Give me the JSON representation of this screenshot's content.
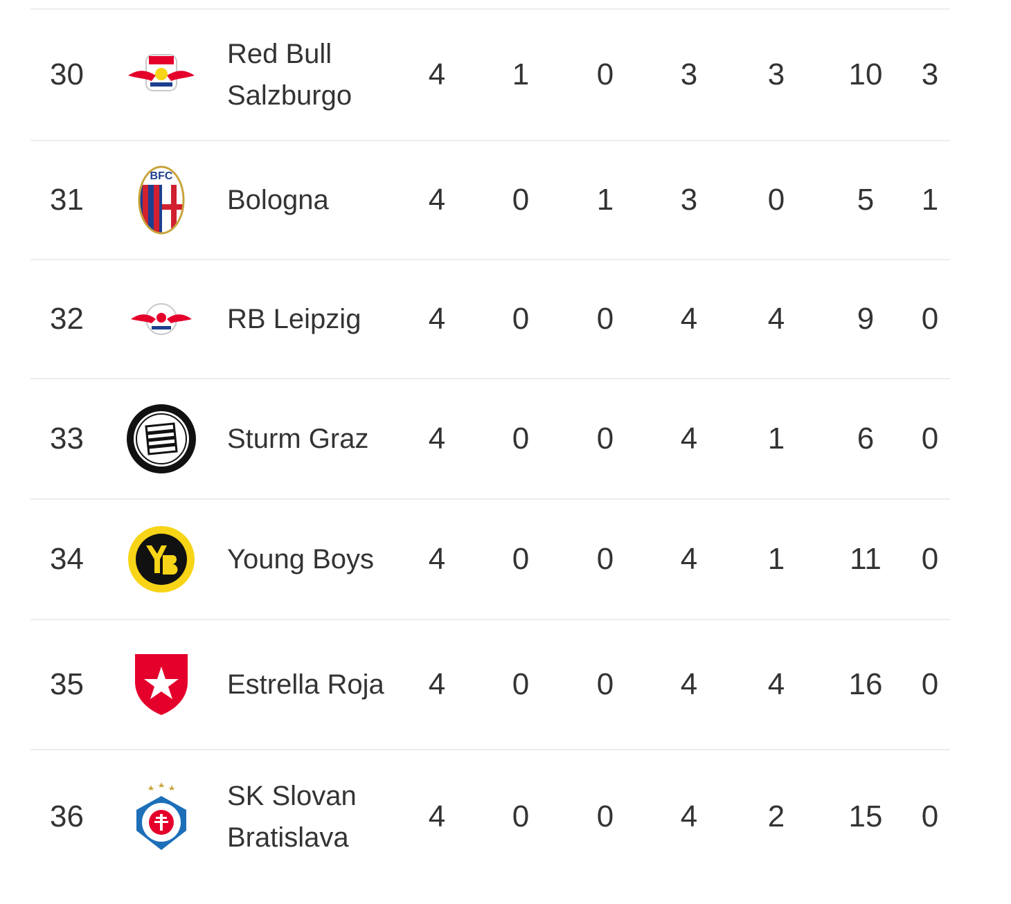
{
  "rows": [
    {
      "pos": "30",
      "team": "Red Bull Salzburgo",
      "crest": "red-bull-salzburg-crest",
      "stats": [
        "4",
        "1",
        "0",
        "3",
        "3",
        "10",
        "3"
      ]
    },
    {
      "pos": "31",
      "team": "Bologna",
      "crest": "bologna-crest",
      "stats": [
        "4",
        "0",
        "1",
        "3",
        "0",
        "5",
        "1"
      ]
    },
    {
      "pos": "32",
      "team": "RB Leipzig",
      "crest": "rb-leipzig-crest",
      "stats": [
        "4",
        "0",
        "0",
        "4",
        "4",
        "9",
        "0"
      ]
    },
    {
      "pos": "33",
      "team": "Sturm Graz",
      "crest": "sturm-graz-crest",
      "stats": [
        "4",
        "0",
        "0",
        "4",
        "1",
        "6",
        "0"
      ]
    },
    {
      "pos": "34",
      "team": "Young Boys",
      "crest": "young-boys-crest",
      "stats": [
        "4",
        "0",
        "0",
        "4",
        "1",
        "11",
        "0"
      ]
    },
    {
      "pos": "35",
      "team": "Estrella Roja",
      "crest": "red-star-crest",
      "stats": [
        "4",
        "0",
        "0",
        "4",
        "4",
        "16",
        "0"
      ]
    },
    {
      "pos": "36",
      "team": "SK Slovan Bratislava",
      "crest": "slovan-bratislava-crest",
      "stats": [
        "4",
        "0",
        "0",
        "4",
        "2",
        "15",
        "0"
      ]
    }
  ],
  "colors": {
    "text": "#333333",
    "divider": "#ececec",
    "red": "#e4002b",
    "yellow": "#f7d417",
    "blue": "#1d6fb8"
  }
}
